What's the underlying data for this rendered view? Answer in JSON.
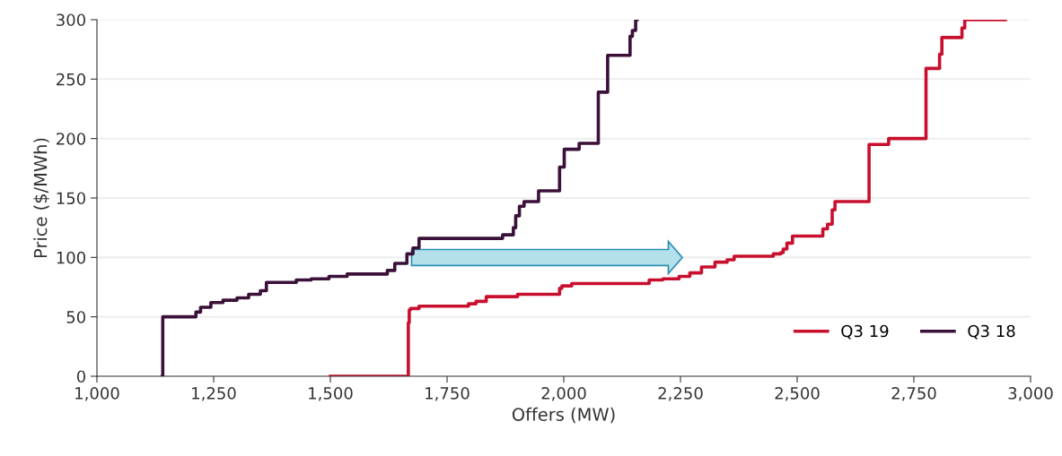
{
  "chart_data": {
    "type": "step",
    "xlabel": "Offers (MW)",
    "ylabel": "Price ($/MWh)",
    "xlim": [
      1000,
      3000
    ],
    "xticks": [
      {
        "value": 1000,
        "label": "1,000"
      },
      {
        "value": 1250,
        "label": "1,250"
      },
      {
        "value": 1500,
        "label": "1,500"
      },
      {
        "value": 1750,
        "label": "1,750"
      },
      {
        "value": 2000,
        "label": "2,000"
      },
      {
        "value": 2250,
        "label": "2,250"
      },
      {
        "value": 2500,
        "label": "2,500"
      },
      {
        "value": 2750,
        "label": "2,750"
      },
      {
        "value": 3000,
        "label": "3,000"
      }
    ],
    "ylim": [
      0,
      300
    ],
    "yticks": [
      0,
      50,
      100,
      150,
      200,
      250,
      300
    ],
    "grid": "y",
    "legend": "bottom right",
    "series": [
      {
        "name": "Q3 19",
        "color": "#c8102e",
        "x": [
          1500,
          1667,
          1669,
          1672,
          1690,
          1796,
          1812,
          1834,
          1901,
          1991,
          1996,
          2017,
          2183,
          2212,
          2247,
          2270,
          2295,
          2324,
          2350,
          2365,
          2449,
          2465,
          2470,
          2478,
          2490,
          2555,
          2565,
          2575,
          2581,
          2654,
          2696,
          2776,
          2805,
          2810,
          2853,
          2859,
          2946
        ],
        "values": [
          0,
          45,
          56,
          57,
          59,
          61,
          63,
          67,
          69,
          74,
          76,
          78,
          81,
          82,
          84,
          87,
          92,
          96,
          98,
          101,
          103,
          104,
          107,
          112,
          118,
          124,
          128,
          140,
          147,
          195,
          200,
          259,
          271,
          285,
          293,
          300,
          300
        ]
      },
      {
        "name": "Q3 18",
        "color": "#3b1039",
        "x": [
          1140,
          1141,
          1212,
          1222,
          1244,
          1270,
          1300,
          1325,
          1350,
          1363,
          1427,
          1459,
          1497,
          1536,
          1622,
          1638,
          1664,
          1677,
          1690,
          1869,
          1892,
          1897,
          1905,
          1915,
          1946,
          1991,
          2001,
          2033,
          2074,
          2094,
          2142,
          2147,
          2154,
          2157
        ],
        "values": [
          0,
          50,
          54,
          58,
          62,
          64,
          66,
          69,
          72,
          79,
          81,
          82,
          84,
          86,
          89,
          95,
          103,
          108,
          116,
          119,
          125,
          135,
          143,
          147,
          156,
          176,
          191,
          196,
          239,
          270,
          286,
          291,
          300,
          300
        ]
      }
    ]
  }
}
